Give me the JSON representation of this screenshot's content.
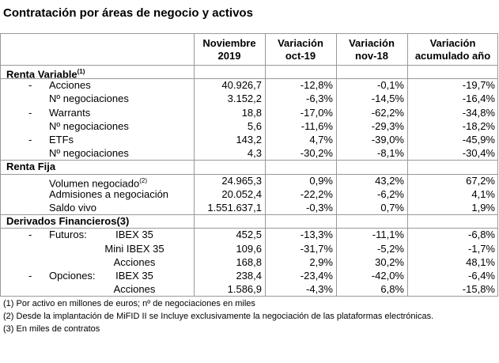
{
  "title": "Contratación por áreas de negocio y activos",
  "table": {
    "header": [
      [
        "Noviembre",
        "2019"
      ],
      [
        "Variación",
        "oct-19"
      ],
      [
        "Variación",
        "nov-18"
      ],
      [
        "Variación",
        "acumulado año"
      ]
    ],
    "sections": [
      {
        "title": "Renta Variable",
        "note": "(1)",
        "rows": [
          {
            "marker": "-",
            "label": "Acciones",
            "cells": [
              "40.926,7",
              "-12,8%",
              "-0,1%",
              "-19,7%"
            ]
          },
          {
            "label": "Nº negociaciones",
            "cells": [
              "3.152,2",
              "-6,3%",
              "-14,5%",
              "-16,4%"
            ]
          },
          {
            "marker": "-",
            "label": "Warrants",
            "cells": [
              "18,8",
              "-17,0%",
              "-62,2%",
              "-34,8%"
            ]
          },
          {
            "label": "Nº negociaciones",
            "cells": [
              "5,6",
              "-11,6%",
              "-29,3%",
              "-18,2%"
            ]
          },
          {
            "marker": "-",
            "label": "ETFs",
            "cells": [
              "143,2",
              "4,7%",
              "-39,0%",
              "-45,9%"
            ]
          },
          {
            "label": "Nº negociaciones",
            "cells": [
              "4,3",
              "-30,2%",
              "-8,1%",
              "-30,4%"
            ]
          }
        ]
      },
      {
        "title": "Renta Fija",
        "rows": [
          {
            "label": "Volumen negociado",
            "note": "(2)",
            "cells": [
              "24.965,3",
              "0,9%",
              "43,2%",
              "67,2%"
            ]
          },
          {
            "label": "Admisiones a negociación",
            "cells": [
              "20.052,4",
              "-22,2%",
              "-6,2%",
              "4,1%"
            ]
          },
          {
            "label": "Saldo vivo",
            "cells": [
              "1.551.637,1",
              "-0,3%",
              "0,7%",
              "1,9%"
            ]
          }
        ]
      },
      {
        "title": "Derivados Financieros(3)",
        "rows": [
          {
            "marker": "-",
            "label": "Futuros:",
            "sublabel": "IBEX 35",
            "cells": [
              "452,5",
              "-13,3%",
              "-11,1%",
              "-6,8%"
            ]
          },
          {
            "sublabel": "Mini IBEX 35",
            "cells": [
              "109,6",
              "-31,7%",
              "-5,2%",
              "-1,7%"
            ]
          },
          {
            "sublabel": "Acciones",
            "cells": [
              "168,8",
              "2,9%",
              "30,2%",
              "48,1%"
            ]
          },
          {
            "marker": "-",
            "label": "Opciones:",
            "sublabel": "IBEX 35",
            "cells": [
              "238,4",
              "-23,4%",
              "-42,0%",
              "-6,4%"
            ]
          },
          {
            "sublabel": "Acciones",
            "cells": [
              "1.586,9",
              "-4,3%",
              "6,8%",
              "-15,8%"
            ]
          }
        ]
      }
    ]
  },
  "footnotes": [
    "(1) Por activo en millones de euros; nº de negociaciones en miles",
    "(2) Desde la implantación de MiFID II se Incluye exclusivamente la negociación de las plataformas electrónicas.",
    "(3) En miles de contratos"
  ]
}
